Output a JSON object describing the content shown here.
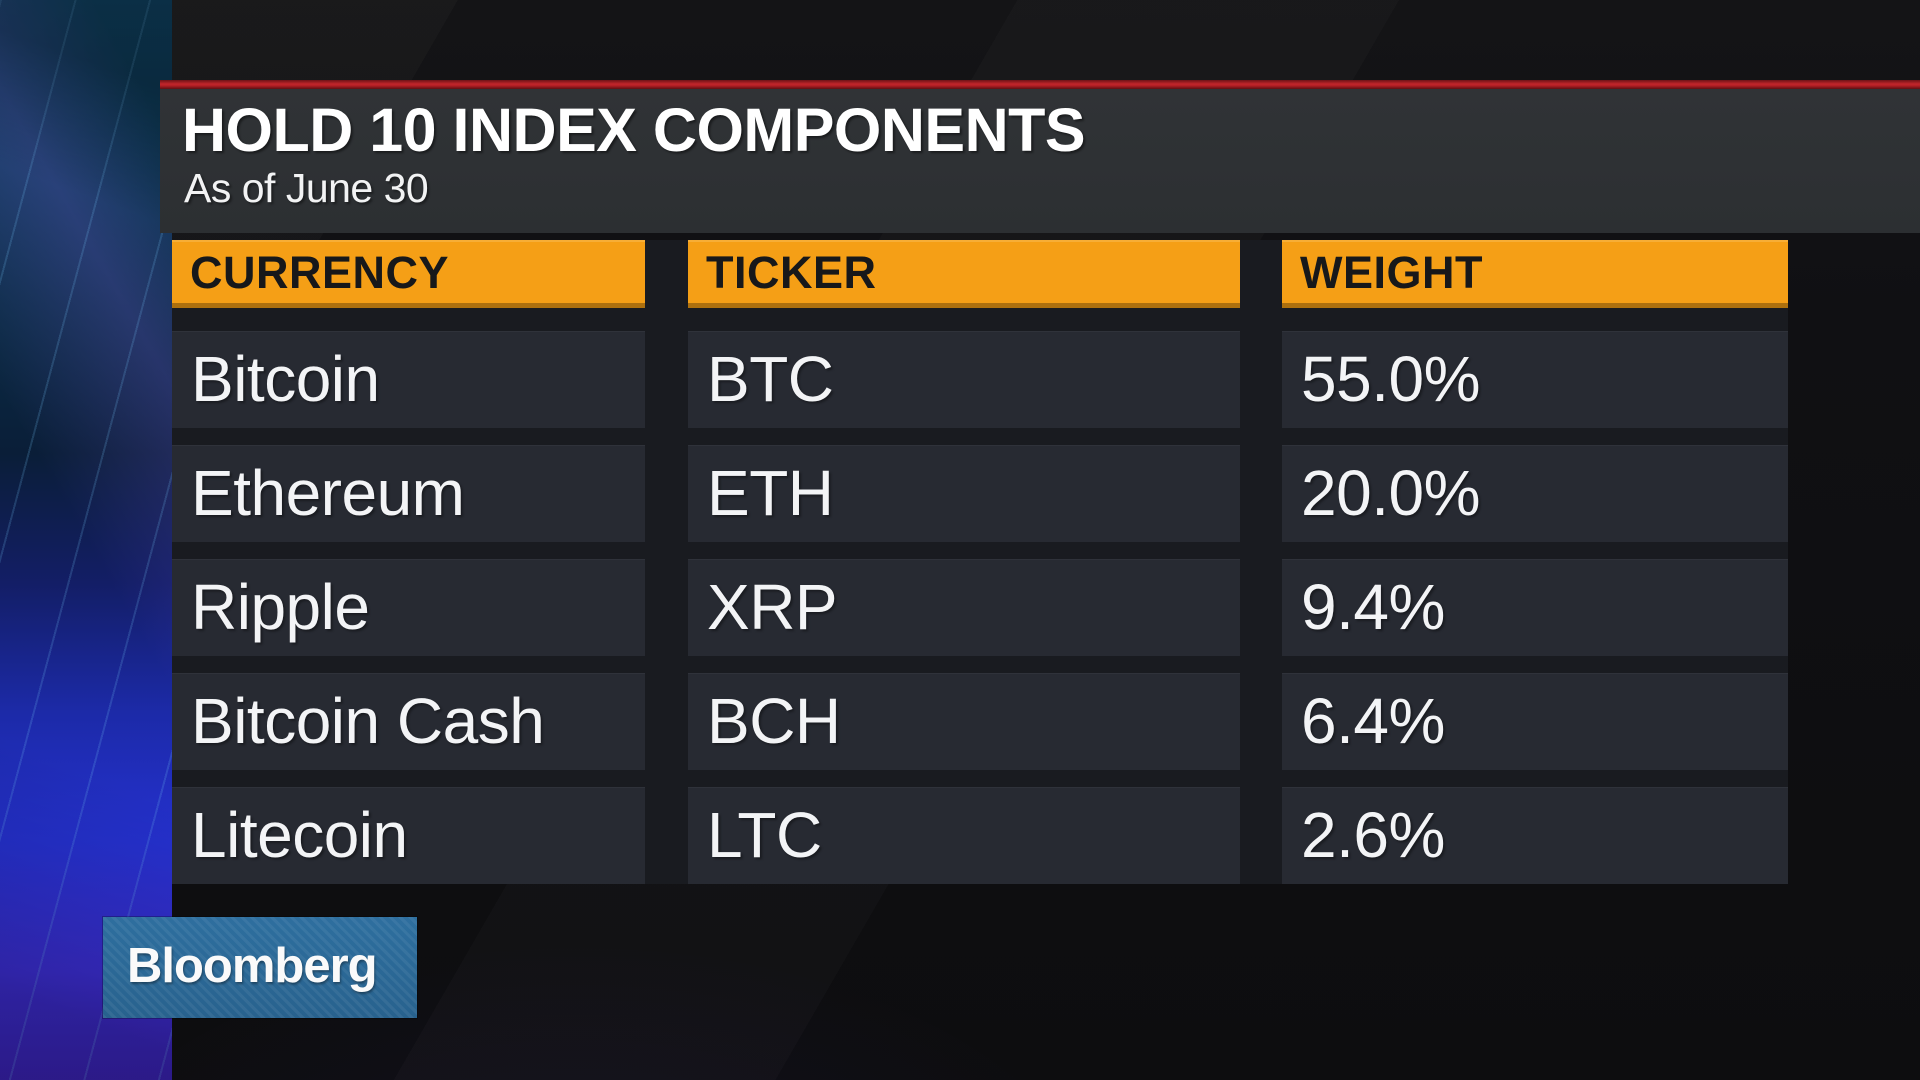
{
  "header": {
    "title": "HOLD 10 INDEX COMPONENTS",
    "subtitle": "As of June 30"
  },
  "table": {
    "columns": [
      {
        "label": "CURRENCY"
      },
      {
        "label": "TICKER"
      },
      {
        "label": "WEIGHT"
      }
    ],
    "rows": [
      {
        "currency": "Bitcoin",
        "ticker": "BTC",
        "weight": "55.0%"
      },
      {
        "currency": "Ethereum",
        "ticker": "ETH",
        "weight": "20.0%"
      },
      {
        "currency": "Ripple",
        "ticker": "XRP",
        "weight": "9.4%"
      },
      {
        "currency": "Bitcoin Cash",
        "ticker": "BCH",
        "weight": "6.4%"
      },
      {
        "currency": "Litecoin",
        "ticker": "LTC",
        "weight": "2.6%"
      }
    ]
  },
  "branding": {
    "logo_text": "Bloomberg"
  },
  "colors": {
    "accent_orange": "#F59F16",
    "red_rule": "#C2262B",
    "banner_bg": "#2D3033",
    "row_bg": "#272A32",
    "table_gap": "#191B20",
    "logo_blue": "#2A6795",
    "text_white": "#F3F4F6",
    "header_text_dark": "#17181A"
  },
  "chart_data": {
    "type": "table",
    "title": "HOLD 10 INDEX COMPONENTS",
    "subtitle": "As of June 30",
    "columns": [
      "CURRENCY",
      "TICKER",
      "WEIGHT"
    ],
    "rows": [
      [
        "Bitcoin",
        "BTC",
        "55.0%"
      ],
      [
        "Ethereum",
        "ETH",
        "20.0%"
      ],
      [
        "Ripple",
        "XRP",
        "9.4%"
      ],
      [
        "Bitcoin Cash",
        "BCH",
        "6.4%"
      ],
      [
        "Litecoin",
        "LTC",
        "2.6%"
      ]
    ],
    "weights_pct": [
      55.0,
      20.0,
      9.4,
      6.4,
      2.6
    ]
  }
}
